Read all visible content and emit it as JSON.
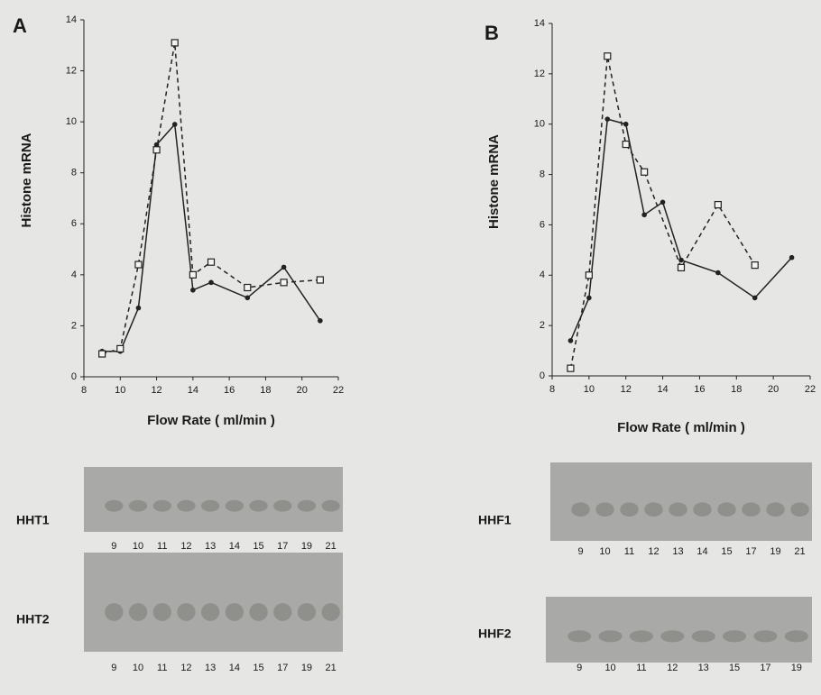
{
  "chart_data": [
    {
      "type": "line",
      "panel": "A",
      "ylabel": "Histone mRNA",
      "xlabel": "Flow Rate ( ml/min )",
      "xlim": [
        8,
        22
      ],
      "xticks": [
        8,
        10,
        12,
        14,
        16,
        18,
        20,
        22
      ],
      "ylim": [
        0,
        14
      ],
      "yticks": [
        0,
        2,
        4,
        6,
        8,
        10,
        12,
        14
      ],
      "series": [
        {
          "color": "#222222",
          "style": "solid",
          "marker": "circle",
          "x": [
            9,
            10,
            11,
            12,
            13,
            14,
            15,
            17,
            19,
            21
          ],
          "values": [
            1.0,
            1.0,
            2.7,
            9.1,
            9.9,
            3.4,
            3.7,
            3.1,
            4.3,
            2.2
          ]
        },
        {
          "color": "#222222",
          "style": "dashed",
          "marker": "square",
          "x": [
            9,
            10,
            11,
            12,
            13,
            14,
            15,
            17,
            19,
            21
          ],
          "values": [
            0.9,
            1.1,
            4.4,
            8.9,
            13.1,
            4.0,
            4.5,
            3.5,
            3.7,
            3.8
          ]
        }
      ],
      "blots": [
        {
          "label": "HHT1",
          "lanes": [
            9,
            10,
            11,
            12,
            13,
            14,
            15,
            17,
            19,
            21
          ]
        },
        {
          "label": "HHT2",
          "lanes": [
            9,
            10,
            11,
            12,
            13,
            14,
            15,
            17,
            19,
            21
          ]
        }
      ]
    },
    {
      "type": "line",
      "panel": "B",
      "ylabel": "Histone mRNA",
      "xlabel": "Flow Rate ( ml/min )",
      "xlim": [
        8,
        22
      ],
      "xticks": [
        8,
        10,
        12,
        14,
        16,
        18,
        20,
        22
      ],
      "ylim": [
        0,
        14
      ],
      "yticks": [
        0,
        2,
        4,
        6,
        8,
        10,
        12,
        14
      ],
      "series": [
        {
          "color": "#222222",
          "style": "solid",
          "marker": "circle",
          "x": [
            9,
            10,
            11,
            12,
            13,
            14,
            15,
            17,
            19,
            21
          ],
          "values": [
            1.4,
            3.1,
            10.2,
            10.0,
            6.4,
            6.9,
            4.6,
            4.1,
            3.1,
            4.7
          ]
        },
        {
          "color": "#222222",
          "style": "dashed",
          "marker": "square",
          "x": [
            9,
            10,
            11,
            12,
            13,
            15,
            17,
            19
          ],
          "values": [
            0.3,
            4.0,
            12.7,
            9.2,
            8.1,
            4.3,
            6.8,
            4.4
          ]
        }
      ],
      "blots": [
        {
          "label": "HHF1",
          "lanes": [
            9,
            10,
            11,
            12,
            13,
            14,
            15,
            17,
            19,
            21
          ]
        },
        {
          "label": "HHF2",
          "lanes": [
            9,
            10,
            11,
            12,
            13,
            15,
            17,
            19
          ]
        }
      ]
    }
  ]
}
